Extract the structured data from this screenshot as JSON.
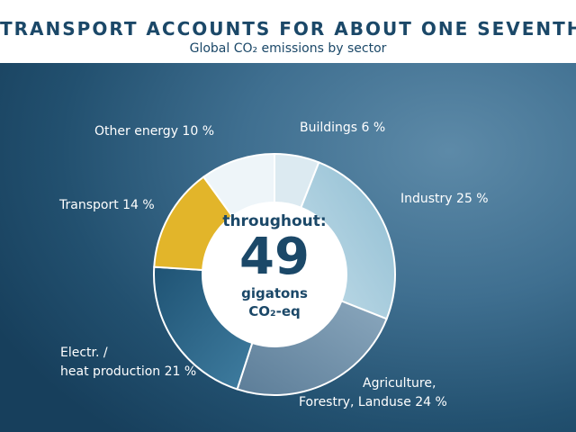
{
  "header": {
    "title": "TRANSPORT ACCOUNTS FOR ABOUT ONE SEVENTH",
    "subtitle": "Global CO₂ emissions by sector"
  },
  "center": {
    "line1": "throughout:",
    "number": "49",
    "line3": "gigatons",
    "line4": "CO₂-eq"
  },
  "chart_data": {
    "type": "pie",
    "title": "TRANSPORT ACCOUNTS FOR ABOUT ONE SEVENTH",
    "subtitle": "Global CO₂ emissions by sector",
    "total": "49 gigatons CO₂-eq",
    "slices": [
      {
        "name": "Buildings",
        "value": 6,
        "label": "Buildings 6 %",
        "color": "#dceaf1"
      },
      {
        "name": "Industry",
        "value": 25,
        "label": "Industry 25 %",
        "color": "#9fc6d8"
      },
      {
        "name": "Agriculture, Forestry, Landuse",
        "value": 24,
        "label_line1": "Agriculture,",
        "label_line2": "Forestry, Landuse 24 %",
        "color": "#6f8ea8"
      },
      {
        "name": "Electr. / heat production",
        "value": 21,
        "label_line1": "Electr. /",
        "label_line2": "heat production 21 %",
        "color": "#2c6384"
      },
      {
        "name": "Transport",
        "value": 14,
        "label": "Transport  14 %",
        "color": "#e2b52a"
      },
      {
        "name": "Other energy",
        "value": 10,
        "label": "Other energy  10 %",
        "color": "#eef5f9"
      }
    ]
  }
}
